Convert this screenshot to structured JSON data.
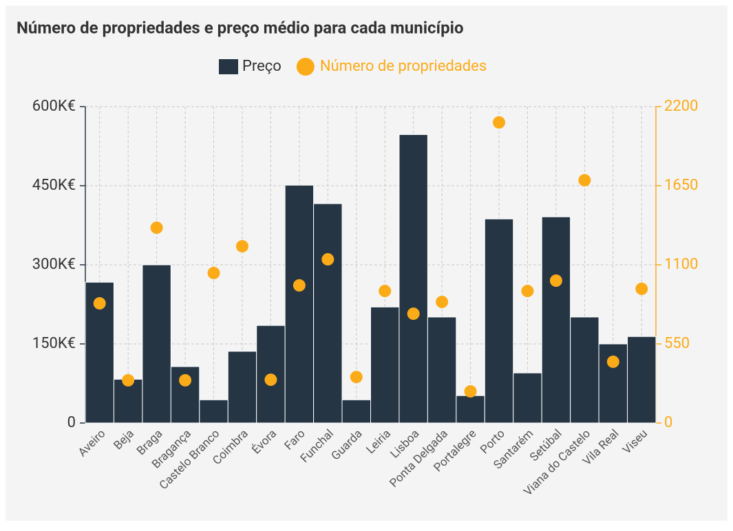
{
  "chart_data": {
    "type": "bar",
    "title": "Número de propriedades e preço médio para cada município",
    "categories": [
      "Aveiro",
      "Beja",
      "Braga",
      "Bragança",
      "Castelo Branco",
      "Coimbra",
      "Évora",
      "Faro",
      "Funchal",
      "Guarda",
      "Leiria",
      "Lisboa",
      "Ponta Delgada",
      "Portalegre",
      "Porto",
      "Santarém",
      "Setúbal",
      "Viana do Castelo",
      "Vila Real",
      "Viseu"
    ],
    "series": [
      {
        "name": "Preço",
        "type": "bar",
        "color": "#253544",
        "values": [
          267000,
          83000,
          300000,
          107000,
          44000,
          136000,
          185000,
          451000,
          416000,
          44000,
          220000,
          547000,
          201000,
          52000,
          387000,
          95000,
          391000,
          201000,
          150000,
          164000
        ]
      },
      {
        "name": "Número de propriedades",
        "type": "scatter",
        "axis": "y2",
        "color": "#fbab18",
        "values": [
          832,
          297,
          1358,
          297,
          1043,
          1229,
          301,
          957,
          1138,
          320,
          918,
          760,
          842,
          220,
          2090,
          918,
          990,
          1688,
          426,
          933
        ]
      }
    ],
    "ylim": [
      0,
      600000
    ],
    "yticks": [
      0,
      {
        "value": 150000,
        "label": "150K€"
      },
      {
        "value": 300000,
        "label": "300K€"
      },
      {
        "value": 450000,
        "label": "450K€"
      },
      {
        "value": 600000,
        "label": "600K€"
      }
    ],
    "y2lim": [
      0,
      2200
    ],
    "y2ticks": [
      0,
      550,
      1100,
      1650,
      2200
    ],
    "grid": true,
    "legend": "top"
  }
}
